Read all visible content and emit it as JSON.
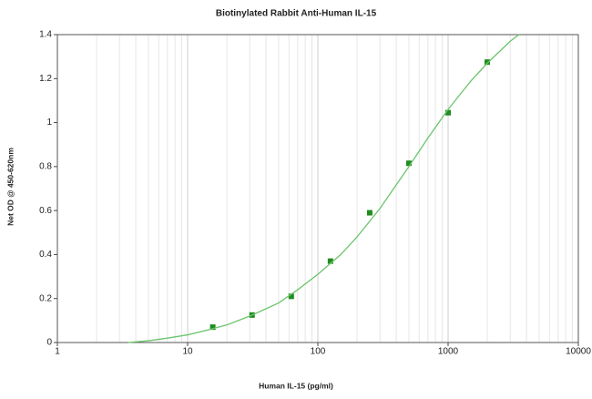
{
  "chart_data": {
    "type": "scatter",
    "title": "Biotinylated Rabbit Anti-Human IL-15",
    "x_label": "Human IL-15 (pg/ml)",
    "y_label": "Net OD @ 450-620nm",
    "x_log": true,
    "xlim": [
      1,
      10000
    ],
    "xticks": [
      1,
      10,
      100,
      1000,
      10000
    ],
    "ylim": [
      0,
      1.4
    ],
    "yticks": [
      0,
      0.2,
      0.4,
      0.6,
      0.8,
      1,
      1.2,
      1.4
    ],
    "grid": true,
    "series": [
      {
        "color": "#1e8c1e",
        "style": "markers",
        "x": [
          15.6,
          31.25,
          62.5,
          125,
          250,
          500,
          1000,
          2000
        ],
        "values": [
          0.07,
          0.125,
          0.21,
          0.37,
          0.59,
          0.815,
          1.045,
          1.275
        ]
      },
      {
        "color": "#6cc46c",
        "style": "line",
        "x": [
          3.5,
          5,
          7,
          10,
          15,
          20,
          30,
          50,
          70,
          100,
          150,
          200,
          300,
          500,
          700,
          1000,
          1500,
          2000,
          3000,
          3500
        ],
        "values": [
          0,
          0.008,
          0.02,
          0.035,
          0.06,
          0.08,
          0.12,
          0.18,
          0.24,
          0.31,
          0.4,
          0.48,
          0.61,
          0.8,
          0.93,
          1.06,
          1.19,
          1.27,
          1.37,
          1.4
        ]
      }
    ]
  }
}
